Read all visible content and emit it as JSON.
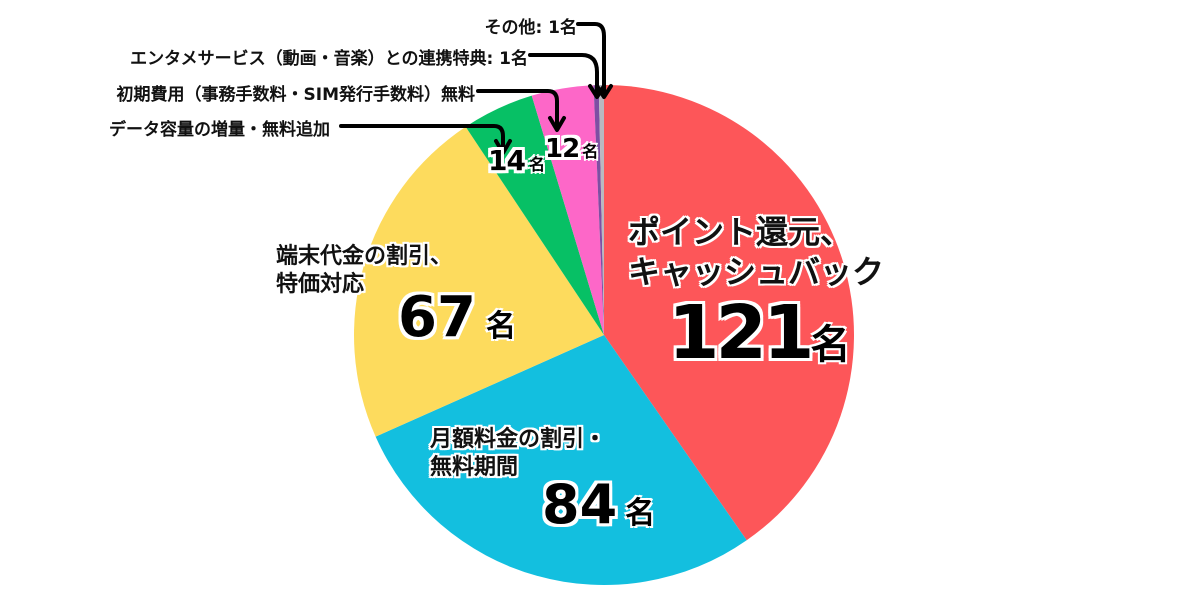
{
  "chart_data": {
    "type": "pie",
    "title": "",
    "unit": "名",
    "total": 300,
    "start_angle": "12 o'clock, clockwise",
    "slices": [
      {
        "label": "ポイント還元、キャッシュバック",
        "value": 121,
        "color": "#fd5659"
      },
      {
        "label": "月額料金の割引・無料期間",
        "value": 84,
        "color": "#13bfdf"
      },
      {
        "label": "端末代金の割引、特価対応",
        "value": 67,
        "color": "#fddb5d"
      },
      {
        "label": "データ容量の増量・無料追加",
        "value": 14,
        "color": "#07c065"
      },
      {
        "label": "初期費用（事務手数料・SIM発行手数料）無料",
        "value": 12,
        "color": "#fd67c8"
      },
      {
        "label": "エンタメサービス（動画・音楽）との連携特典",
        "value": 1,
        "color": "#7e4fa3"
      },
      {
        "label": "その他",
        "value": 1,
        "color": "#b9b9c0"
      }
    ]
  },
  "labels": {
    "points": {
      "line1": "ポイント還元、",
      "line2": "キャッシュバック",
      "num": "121",
      "unit": "名"
    },
    "monthly": {
      "line1": "月額料金の割引・",
      "line2": "無料期間",
      "num": "84",
      "unit": "名"
    },
    "device": {
      "line1": "端末代金の割引、",
      "line2": "特価対応",
      "num": "67",
      "unit": "名"
    },
    "data": {
      "num": "14",
      "unit": "名"
    },
    "initial": {
      "num": "12",
      "unit": "名"
    }
  },
  "callouts": {
    "other": "その他: 1名",
    "entertainment": "エンタメサービス（動画・音楽）との連携特典: 1名",
    "initial": "初期費用（事務手数料・SIM発行手数料）無料",
    "data": "データ容量の増量・無料追加"
  }
}
